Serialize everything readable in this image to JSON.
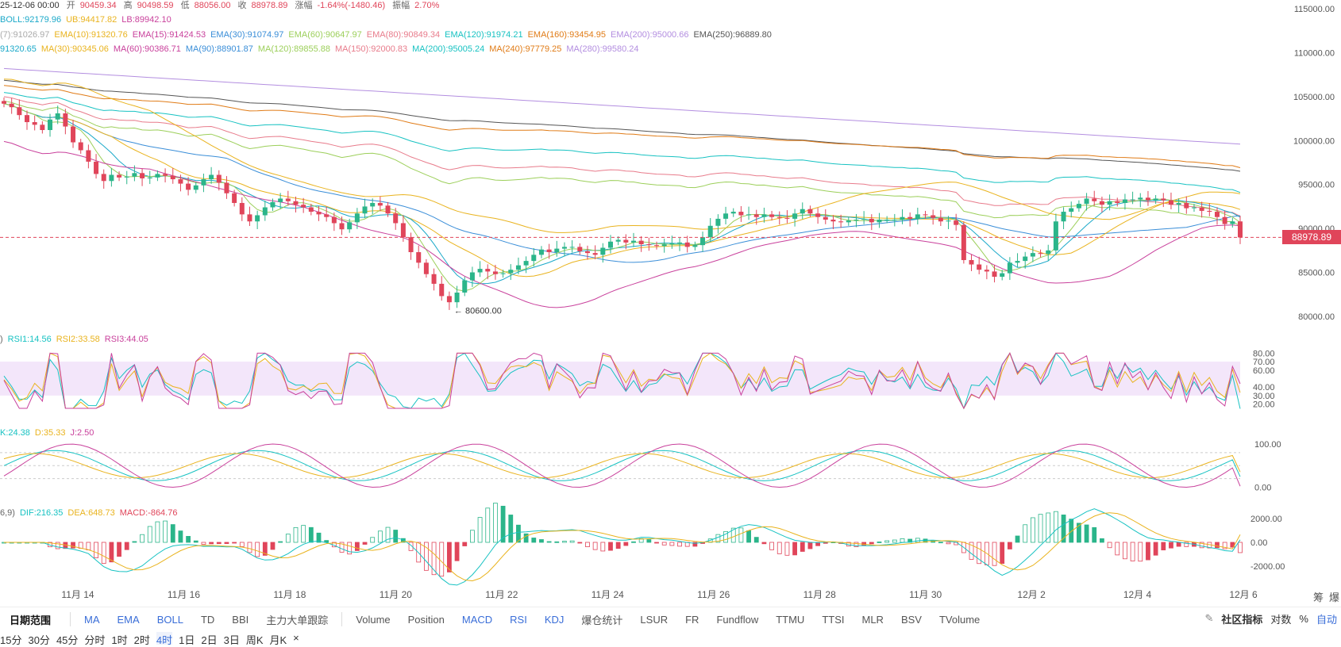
{
  "header": {
    "date": "25-12-06 00:00",
    "open_label": "开",
    "open": "90459.34",
    "high_label": "高",
    "high": "90498.59",
    "low_label": "低",
    "low": "88056.00",
    "close_label": "收",
    "close": "88978.89",
    "chg_label": "涨幅",
    "chg": "-1.64%(-1480.46)",
    "amp_label": "振幅",
    "amp": "2.70%"
  },
  "boll_line": [
    {
      "text": "BOLL:92179.96",
      "color": "#1ba9c9"
    },
    {
      "text": "UB:94417.82",
      "color": "#e9b31e"
    },
    {
      "text": "LB:89942.10",
      "color": "#c9419c"
    }
  ],
  "ema_line": [
    {
      "text": "(7):91026.97",
      "color": "#aaaaaa"
    },
    {
      "text": "EMA(10):91320.76",
      "color": "#e9b31e"
    },
    {
      "text": "EMA(15):91424.53",
      "color": "#c9419c"
    },
    {
      "text": "EMA(30):91074.97",
      "color": "#3a8ed8"
    },
    {
      "text": "EMA(60):90647.97",
      "color": "#9ccf5a"
    },
    {
      "text": "EMA(80):90849.34",
      "color": "#e87b8b"
    },
    {
      "text": "EMA(120):91974.21",
      "color": "#17c2c2"
    },
    {
      "text": "EMA(160):93454.95",
      "color": "#e07b16"
    },
    {
      "text": "EMA(200):95000.66",
      "color": "#b38ee0"
    },
    {
      "text": "EMA(250):96889.80",
      "color": "#555555"
    }
  ],
  "ma_line": [
    {
      "text": "91320.65",
      "color": "#1ba9c9"
    },
    {
      "text": "MA(30):90345.06",
      "color": "#e9b31e"
    },
    {
      "text": "MA(60):90386.71",
      "color": "#c9419c"
    },
    {
      "text": "MA(90):88901.87",
      "color": "#3a8ed8"
    },
    {
      "text": "MA(120):89855.88",
      "color": "#9ccf5a"
    },
    {
      "text": "MA(150):92000.83",
      "color": "#e87b8b"
    },
    {
      "text": "MA(200):95005.24",
      "color": "#17c2c2"
    },
    {
      "text": "MA(240):97779.25",
      "color": "#e07b16"
    },
    {
      "text": "MA(280):99580.24",
      "color": "#b38ee0"
    }
  ],
  "rsi_line": [
    {
      "text": ")",
      "color": "#666666"
    },
    {
      "text": "RSI1:14.56",
      "color": "#17c2c2"
    },
    {
      "text": "RSI2:33.58",
      "color": "#e9b31e"
    },
    {
      "text": "RSI3:44.05",
      "color": "#c9419c"
    }
  ],
  "kdj_line": [
    {
      "text": "K:24.38",
      "color": "#17c2c2"
    },
    {
      "text": "D:35.33",
      "color": "#e9b31e"
    },
    {
      "text": "J:2.50",
      "color": "#c9419c"
    }
  ],
  "macd_line": [
    {
      "text": "6,9)",
      "color": "#666666"
    },
    {
      "text": "DIF:216.35",
      "color": "#17c2c2"
    },
    {
      "text": "DEA:648.73",
      "color": "#e9b31e"
    },
    {
      "text": "MACD:-864.76",
      "color": "#e0455a"
    }
  ],
  "chart_data": {
    "type": "candlestick",
    "title": "",
    "x_ticks": [
      "11月 14",
      "11月 16",
      "11月 18",
      "11月 20",
      "11月 22",
      "11月 24",
      "11月 26",
      "11月 28",
      "11月 30",
      "12月 2",
      "12月 4",
      "12月 6"
    ],
    "y_ticks": [
      "115000.00",
      "110000.00",
      "105000.00",
      "100000.00",
      "95000.00",
      "90000.00",
      "85000.00",
      "80000.00"
    ],
    "ylim": [
      79000,
      116000
    ],
    "current_price": "88978.89",
    "low_annotation": "← 80600.00",
    "low_annotation_value": 80600,
    "close_series": [
      104200,
      103800,
      102900,
      102100,
      101800,
      101200,
      102400,
      103100,
      101600,
      99800,
      98900,
      97600,
      96200,
      95400,
      96100,
      95800,
      95900,
      96300,
      95700,
      95800,
      96200,
      96000,
      95600,
      95100,
      94400,
      94900,
      95600,
      96100,
      95200,
      94000,
      92900,
      91600,
      90800,
      91500,
      92400,
      93000,
      93400,
      93100,
      92700,
      92400,
      91900,
      91600,
      91300,
      90600,
      89900,
      90700,
      91700,
      92500,
      92900,
      92600,
      91700,
      90600,
      89000,
      87300,
      86100,
      84800,
      83700,
      82300,
      81600,
      82700,
      84100,
      85000,
      85400,
      85100,
      84800,
      84900,
      85300,
      85800,
      86300,
      87000,
      87600,
      87300,
      87700,
      87900,
      87900,
      87400,
      87200,
      87000,
      87800,
      88500,
      88700,
      88400,
      88600,
      88200,
      88100,
      88000,
      88200,
      88300,
      88400,
      87900,
      88100,
      89000,
      90300,
      91100,
      91700,
      91900,
      91500,
      91600,
      91300,
      91600,
      91300,
      91200,
      91100,
      91700,
      92200,
      91700,
      91300,
      91000,
      90800,
      90700,
      90900,
      91000,
      91100,
      90700,
      91000,
      91000,
      91000,
      91300,
      91100,
      91600,
      91500,
      91200,
      90800,
      90900,
      90400,
      86400,
      85900,
      85300,
      85100,
      84500,
      84900,
      86100,
      86300,
      86800,
      87200,
      87100,
      87500,
      90800,
      91900,
      92300,
      92800,
      93400,
      93100,
      92700,
      93100,
      92900,
      93300,
      93300,
      93500,
      93200,
      93400,
      93200,
      92700,
      92900,
      92300,
      92400,
      92000,
      91900,
      91300,
      90500,
      90800,
      88979
    ],
    "indicator_ticks": {
      "rsi": [
        "80.00",
        "70.00",
        "60.00",
        "40.00",
        "30.00",
        "20.00"
      ],
      "kdj": [
        "100.00",
        "0.00"
      ],
      "macd": [
        "2000.00",
        "0.00",
        "-2000.00"
      ]
    },
    "rsi_last": [
      14.56,
      33.58,
      44.05
    ],
    "kdj_last": [
      24.38,
      35.33,
      2.5
    ],
    "macd_last": {
      "dif": 216.35,
      "dea": 648.73,
      "macd": -864.76
    },
    "overlay_last": {
      "ub": 94417.82,
      "mid": 92179.96,
      "lb": 89942.1
    },
    "colors": {
      "up": "#2bb58a",
      "down": "#e0455a"
    }
  },
  "right_labels": {
    "chips": "筹",
    "liq": "爆"
  },
  "bottom_bar": {
    "date_range": "日期范围",
    "main_indicators": [
      "MA",
      "EMA",
      "BOLL",
      "TD",
      "BBI",
      "主力大单跟踪"
    ],
    "sub_indicators": [
      "Volume",
      "Position",
      "MACD",
      "RSI",
      "KDJ",
      "爆仓统计",
      "LSUR",
      "FR",
      "Fundflow",
      "TTMU",
      "TTSI",
      "MLR",
      "BSV",
      "TVolume"
    ],
    "community": "社区指标",
    "log": "对数",
    "pct": "%",
    "auto": "自动"
  },
  "timeframes": [
    "15分",
    "30分",
    "45分",
    "分时",
    "1时",
    "2时",
    "4时",
    "1日",
    "2日",
    "3日",
    "周K",
    "月K",
    "×"
  ],
  "active_timeframe": "4时"
}
